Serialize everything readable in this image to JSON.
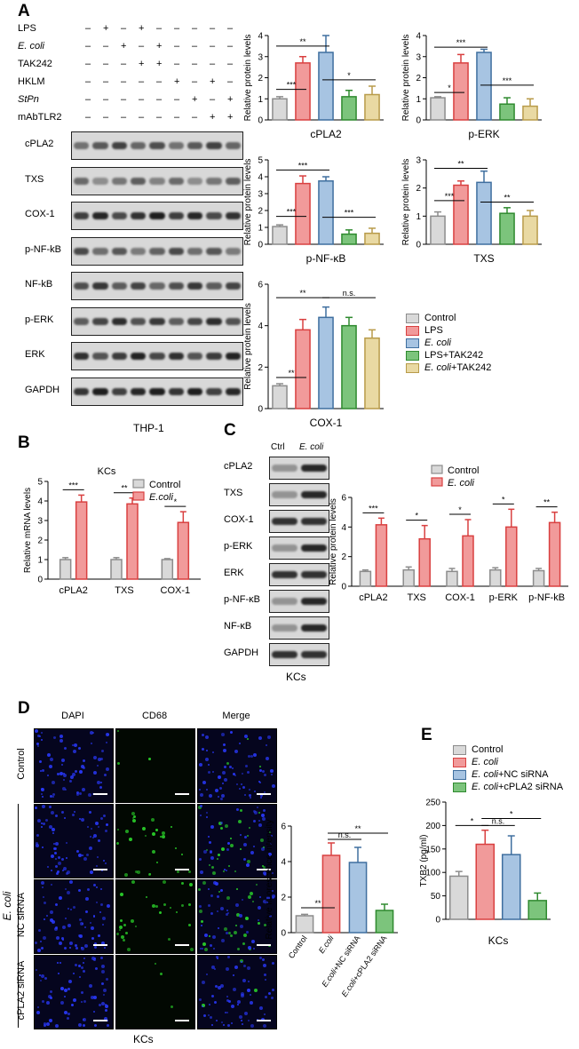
{
  "panels": {
    "A": {
      "letter": "A",
      "treatments": [
        {
          "label": "LPS",
          "italic": false,
          "marks": [
            "-",
            "+",
            "-",
            "+",
            "-",
            "-",
            "-",
            "-",
            "-"
          ]
        },
        {
          "label": "E. coli",
          "italic": true,
          "marks": [
            "-",
            "-",
            "+",
            "-",
            "+",
            "-",
            "-",
            "-",
            "-"
          ]
        },
        {
          "label": "TAK242",
          "italic": false,
          "marks": [
            "-",
            "-",
            "-",
            "+",
            "+",
            "-",
            "-",
            "-",
            "-"
          ]
        },
        {
          "label": "HKLM",
          "italic": false,
          "marks": [
            "-",
            "-",
            "-",
            "-",
            "-",
            "+",
            "-",
            "+",
            "-"
          ]
        },
        {
          "label": "StPn",
          "italic": true,
          "marks": [
            "-",
            "-",
            "-",
            "-",
            "-",
            "-",
            "+",
            "-",
            "+"
          ]
        },
        {
          "label": "mAbTLR2",
          "italic": false,
          "marks": [
            "-",
            "-",
            "-",
            "-",
            "-",
            "-",
            "-",
            "+",
            "+"
          ]
        }
      ],
      "blots": [
        "cPLA2",
        "TXS",
        "COX-1",
        "p-NF-kB",
        "NF-kB",
        "p-ERK",
        "ERK",
        "GAPDH"
      ],
      "cell_label": "THP-1",
      "legend": [
        "Control",
        "LPS",
        "E. coli",
        "LPS+TAK242",
        "E. coli+TAK242"
      ]
    },
    "B": {
      "letter": "B",
      "title": "KCs",
      "legend": [
        "Control",
        "E.coli"
      ]
    },
    "C": {
      "letter": "C",
      "lane_labels": [
        "Ctrl",
        "E. coli"
      ],
      "blots": [
        "cPLA2",
        "TXS",
        "COX-1",
        "p-ERK",
        "ERK",
        "p-NF-κB",
        "NF-κB",
        "GAPDH"
      ],
      "cell_label": "KCs",
      "legend": [
        "Control",
        "E. coli"
      ]
    },
    "D": {
      "letter": "D",
      "columns": [
        "DAPI",
        "CD68",
        "Merge"
      ],
      "rows": [
        "Control",
        "NC siRNA",
        "cPLA2 siRNA"
      ],
      "group_label": "E. coli",
      "cell_label": "KCs"
    },
    "E": {
      "letter": "E",
      "legend": [
        "Control",
        "E. coli",
        "E. coli+NC siRNA",
        "E. coli+cPLA2 siRNA"
      ],
      "cell_label": "KCs"
    }
  },
  "colors": {
    "control": "#d9d9d9",
    "lps": "#f19a9a",
    "ecoli": "#a7c4e2",
    "lps_tak": "#7cc47c",
    "ecoli_tak": "#e9d9a3",
    "control_edge": "#8c8c8c",
    "lps_edge": "#d94040",
    "ecoli_edge": "#3f6f9f",
    "lps_tak_edge": "#2f8a2f",
    "ecoli_tak_edge": "#b89b4a",
    "green_fluor": "#2bd62b",
    "blue_fluor": "#2a3aff"
  },
  "chart_data": [
    {
      "id": "A-cPLA2",
      "type": "bar",
      "xlabel": "cPLA2",
      "ylabel": "Relative protein levels",
      "categories": [
        "Control",
        "LPS",
        "E. coli",
        "LPS+TAK242",
        "E. coli+TAK242"
      ],
      "values": [
        1.0,
        2.7,
        3.2,
        1.1,
        1.2
      ],
      "errors": [
        0.1,
        0.3,
        0.8,
        0.3,
        0.4
      ],
      "ylim": [
        0,
        4
      ],
      "yticks": [
        0,
        1,
        2,
        3,
        4
      ],
      "sig": [
        {
          "from": 0,
          "to": 1,
          "text": "***",
          "y": 1.45
        },
        {
          "from": 0,
          "to": 2,
          "text": "**",
          "y": 3.5
        },
        {
          "from": 2,
          "to": 4,
          "text": "*",
          "y": 1.9
        }
      ]
    },
    {
      "id": "A-pERK",
      "type": "bar",
      "xlabel": "p-ERK",
      "ylabel": "Relative protein levels",
      "categories": [
        "Control",
        "LPS",
        "E. coli",
        "LPS+TAK242",
        "E. coli+TAK242"
      ],
      "values": [
        1.05,
        2.7,
        3.2,
        0.75,
        0.65
      ],
      "errors": [
        0.05,
        0.4,
        0.15,
        0.3,
        0.35
      ],
      "ylim": [
        0,
        4
      ],
      "yticks": [
        0,
        1,
        2,
        3,
        4
      ],
      "sig": [
        {
          "from": 0,
          "to": 1,
          "text": "*",
          "y": 1.3
        },
        {
          "from": 0,
          "to": 2,
          "text": "***",
          "y": 3.45
        },
        {
          "from": 2,
          "to": 4,
          "text": "***",
          "y": 1.65
        }
      ]
    },
    {
      "id": "A-pNFkB",
      "type": "bar",
      "xlabel": "p-NF-κB",
      "ylabel": "Relative protein levels",
      "categories": [
        "Control",
        "LPS",
        "E. coli",
        "LPS+TAK242",
        "E. coli+TAK242"
      ],
      "values": [
        1.05,
        3.6,
        3.75,
        0.6,
        0.65
      ],
      "errors": [
        0.1,
        0.45,
        0.25,
        0.25,
        0.3
      ],
      "ylim": [
        0,
        5
      ],
      "yticks": [
        0,
        1,
        2,
        3,
        4,
        5
      ],
      "sig": [
        {
          "from": 0,
          "to": 1,
          "text": "***",
          "y": 1.65
        },
        {
          "from": 0,
          "to": 2,
          "text": "***",
          "y": 4.4
        },
        {
          "from": 2,
          "to": 4,
          "text": "***",
          "y": 1.6
        }
      ]
    },
    {
      "id": "A-TXS",
      "type": "bar",
      "xlabel": "TXS",
      "ylabel": "Relative protein levels",
      "categories": [
        "Control",
        "LPS",
        "E. coli",
        "LPS+TAK242",
        "E. coli+TAK242"
      ],
      "values": [
        1.0,
        2.1,
        2.2,
        1.1,
        1.0
      ],
      "errors": [
        0.15,
        0.15,
        0.4,
        0.2,
        0.2
      ],
      "ylim": [
        0,
        3
      ],
      "yticks": [
        0,
        1,
        2,
        3
      ],
      "sig": [
        {
          "from": 0,
          "to": 1,
          "text": "***",
          "y": 1.55
        },
        {
          "from": 0,
          "to": 2,
          "text": "**",
          "y": 2.7
        },
        {
          "from": 2,
          "to": 4,
          "text": "**",
          "y": 1.5
        }
      ]
    },
    {
      "id": "A-COX1",
      "type": "bar",
      "xlabel": "COX-1",
      "ylabel": "Relative protein levels",
      "categories": [
        "Control",
        "LPS",
        "E. coli",
        "LPS+TAK242",
        "E. coli+TAK242"
      ],
      "values": [
        1.1,
        3.8,
        4.4,
        4.0,
        3.4
      ],
      "errors": [
        0.1,
        0.5,
        0.5,
        0.4,
        0.4
      ],
      "ylim": [
        0,
        6
      ],
      "yticks": [
        0,
        2,
        4,
        6
      ],
      "sig": [
        {
          "from": 0,
          "to": 1,
          "text": "**",
          "y": 1.5
        },
        {
          "from": 0,
          "to": 2,
          "text": "**",
          "y": 5.35
        },
        {
          "from": 2,
          "to": 4,
          "text": "n.s.",
          "y": 5.35
        }
      ]
    },
    {
      "id": "B",
      "type": "bar",
      "title": "KCs",
      "ylabel": "Relative mRNA levels",
      "categories": [
        "cPLA2",
        "TXS",
        "COX-1"
      ],
      "series": [
        {
          "name": "Control",
          "values": [
            1.0,
            1.0,
            1.0
          ],
          "errors": [
            0.1,
            0.1,
            0.05
          ]
        },
        {
          "name": "E.coli",
          "values": [
            3.95,
            3.85,
            2.9
          ],
          "errors": [
            0.35,
            0.3,
            0.55
          ]
        }
      ],
      "ylim": [
        0,
        5
      ],
      "yticks": [
        0,
        1,
        2,
        3,
        4,
        5
      ],
      "sig": [
        "***",
        "**",
        "*"
      ]
    },
    {
      "id": "C",
      "type": "bar",
      "ylabel": "Relative protein levels",
      "categories": [
        "cPLA2",
        "TXS",
        "COX-1",
        "p-ERK",
        "p-NF-kB"
      ],
      "series": [
        {
          "name": "Control",
          "values": [
            1.0,
            1.1,
            1.0,
            1.1,
            1.05
          ],
          "errors": [
            0.1,
            0.2,
            0.2,
            0.15,
            0.15
          ]
        },
        {
          "name": "E. coli",
          "values": [
            4.15,
            3.2,
            3.4,
            4.0,
            4.3
          ],
          "errors": [
            0.45,
            0.9,
            1.1,
            1.2,
            0.7
          ]
        }
      ],
      "ylim": [
        0,
        6
      ],
      "yticks": [
        0,
        2,
        4,
        6
      ],
      "sig": [
        "***",
        "*",
        "*",
        "*",
        "**"
      ]
    },
    {
      "id": "D",
      "type": "bar",
      "ylabel": "Relative fluorescence intensity",
      "categories": [
        "Control",
        "E.coli",
        "E.coli+NC siRNA",
        "E.coli+cPLA2 siRNA"
      ],
      "values": [
        0.95,
        4.35,
        3.95,
        1.25
      ],
      "errors": [
        0.08,
        0.7,
        0.85,
        0.35
      ],
      "ylim": [
        0,
        6
      ],
      "yticks": [
        0,
        2,
        4,
        6
      ],
      "sig": [
        {
          "from": 0,
          "to": 1,
          "text": "**",
          "y": 1.4
        },
        {
          "from": 1,
          "to": 2,
          "text": "n.s.",
          "y": 5.25
        },
        {
          "from": 1,
          "to": 3,
          "text": "**",
          "y": 5.6
        }
      ]
    },
    {
      "id": "E",
      "type": "bar",
      "ylabel": "TXB2 (pg/ml)",
      "xlabel": "KCs",
      "categories": [
        "Control",
        "E. coli",
        "E. coli+NC siRNA",
        "E. coli+cPLA2 siRNA"
      ],
      "values": [
        92,
        160,
        138,
        40
      ],
      "errors": [
        10,
        30,
        40,
        16
      ],
      "ylim": [
        0,
        250
      ],
      "yticks": [
        0,
        50,
        100,
        150,
        200,
        250
      ],
      "sig": [
        {
          "from": 0,
          "to": 1,
          "text": "*",
          "y": 200
        },
        {
          "from": 1,
          "to": 2,
          "text": "n.s.",
          "y": 200
        },
        {
          "from": 1,
          "to": 3,
          "text": "*",
          "y": 215
        }
      ]
    }
  ]
}
